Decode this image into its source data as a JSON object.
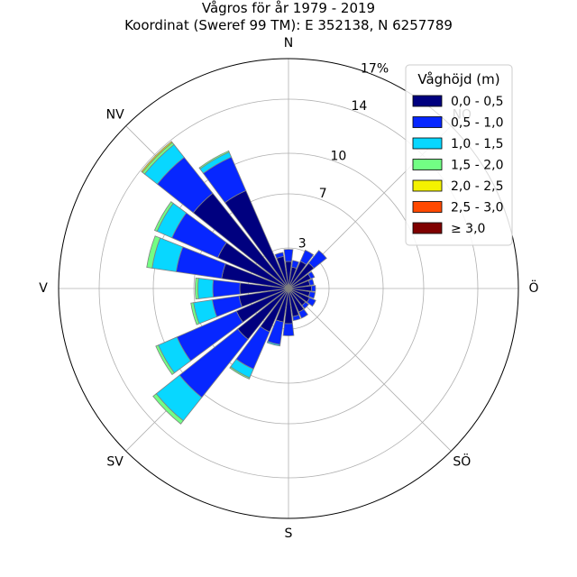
{
  "chart_data": {
    "type": "bar",
    "subtype": "wind-rose (polar stacked bar)",
    "title": "Vågros för år 1979 - 2019",
    "subtitle": "Koordinat (Sweref 99 TM): E 352138, N 6257789",
    "radial_unit": "%",
    "radial_ticks": [
      3,
      7,
      10,
      14,
      17
    ],
    "radial_tick_labels": [
      "3",
      "7",
      "10",
      "14",
      "17%"
    ],
    "rmax": 17,
    "grid": true,
    "directions": [
      "N",
      "NO",
      "Ö",
      "SÖ",
      "S",
      "SV",
      "V",
      "NV"
    ],
    "direction_angles_deg": [
      0,
      45,
      90,
      135,
      180,
      225,
      270,
      315
    ],
    "legend": {
      "title": "Våghöjd (m)",
      "position": "top-right",
      "entries": [
        "0,0 - 0,5",
        "0,5 - 1,0",
        "1,0 - 1,5",
        "1,5 - 2,0",
        "2,0 - 2,5",
        "2,5 - 3,0",
        "≥ 3,0"
      ]
    },
    "colors": [
      "#00007f",
      "#0727ff",
      "#08d7ff",
      "#72ff84",
      "#f4f200",
      "#ff4900",
      "#7f0000"
    ],
    "sector_width_deg": 15,
    "sector_centers_deg": [
      0,
      15,
      30,
      45,
      60,
      75,
      90,
      105,
      120,
      135,
      150,
      165,
      180,
      195,
      210,
      225,
      240,
      255,
      270,
      285,
      300,
      315,
      330,
      345
    ],
    "series": [
      {
        "name": "0,0 - 0,5",
        "values": [
          2.0,
          1.6,
          2.2,
          2.4,
          1.8,
          1.6,
          1.7,
          1.6,
          1.7,
          1.6,
          1.9,
          2.1,
          2.6,
          2.5,
          3.5,
          4.8,
          4.2,
          3.7,
          3.6,
          5.0,
          5.7,
          9.0,
          7.9,
          2.4
        ]
      },
      {
        "name": "0,5 - 1,0",
        "values": [
          0.9,
          0.5,
          0.9,
          1.2,
          0.3,
          0.3,
          0.3,
          0.4,
          0.5,
          0.3,
          0.5,
          0.3,
          0.9,
          1.7,
          3.0,
          5.5,
          4.8,
          2.0,
          2.0,
          3.4,
          3.7,
          3.4,
          2.7,
          0.3
        ]
      },
      {
        "name": "1,0 - 1,5",
        "values": [
          0,
          0,
          0,
          0,
          0,
          0,
          0,
          0,
          0,
          0,
          0,
          0,
          0,
          0.1,
          0.7,
          2.2,
          1.5,
          1.4,
          1.1,
          1.8,
          1.2,
          1.2,
          0.4,
          0
        ]
      },
      {
        "name": "1,5 - 2,0",
        "values": [
          0,
          0,
          0,
          0,
          0,
          0,
          0,
          0,
          0,
          0,
          0,
          0,
          0,
          0,
          0.1,
          0.3,
          0.2,
          0.2,
          0.2,
          0.4,
          0.2,
          0.2,
          0.1,
          0
        ]
      },
      {
        "name": "2,0 - 2,5",
        "values": [
          0,
          0,
          0,
          0,
          0,
          0,
          0,
          0,
          0,
          0,
          0,
          0,
          0,
          0,
          0,
          0,
          0,
          0,
          0,
          0,
          0,
          0.1,
          0,
          0
        ]
      },
      {
        "name": "2,5 - 3,0",
        "values": [
          0,
          0,
          0,
          0,
          0,
          0,
          0,
          0,
          0,
          0,
          0,
          0,
          0,
          0,
          0,
          0,
          0,
          0,
          0,
          0,
          0,
          0,
          0,
          0
        ]
      },
      {
        "name": "≥ 3,0",
        "values": [
          0,
          0,
          0,
          0,
          0,
          0,
          0,
          0,
          0,
          0,
          0,
          0,
          0,
          0,
          0,
          0,
          0,
          0,
          0,
          0,
          0,
          0,
          0,
          0
        ]
      }
    ]
  }
}
